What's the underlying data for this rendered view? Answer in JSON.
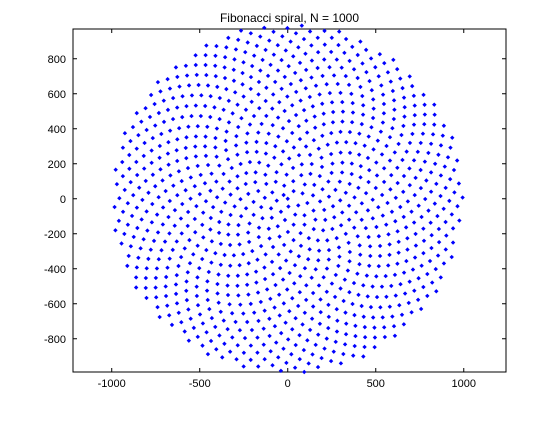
{
  "chart_data": {
    "type": "scatter",
    "title": "Fibonacci spiral, N = 1000",
    "xlabel": "",
    "ylabel": "",
    "xlim": [
      -1220,
      1240
    ],
    "ylim": [
      -990,
      970
    ],
    "xticks": [
      -1000,
      -500,
      0,
      500,
      1000
    ],
    "yticks": [
      -800,
      -600,
      -400,
      -200,
      0,
      200,
      400,
      600,
      800
    ],
    "xtick_labels": [
      "-1000",
      "-500",
      "0",
      "500",
      "1000"
    ],
    "ytick_labels": [
      "-800",
      "-600",
      "-400",
      "-200",
      "0",
      "200",
      "400",
      "600",
      "800"
    ],
    "grid": false,
    "legend": "none",
    "marker": "diamond",
    "marker_color": "#0000ff",
    "series": [
      {
        "point_count": 1000,
        "radius_max": 1000,
        "golden_angle_deg": 137.508,
        "x_first10": [
          0,
          -23.0,
          2.1,
          37.5,
          -57.2,
          32.4,
          16.8,
          -71.1,
          89.0,
          -35.5
        ],
        "y_first10": [
          0,
          21.0,
          -44.6,
          39.9,
          -13.0,
          -66.3,
          81.0,
          -47.8,
          -20.8,
          91.7
        ]
      }
    ]
  }
}
